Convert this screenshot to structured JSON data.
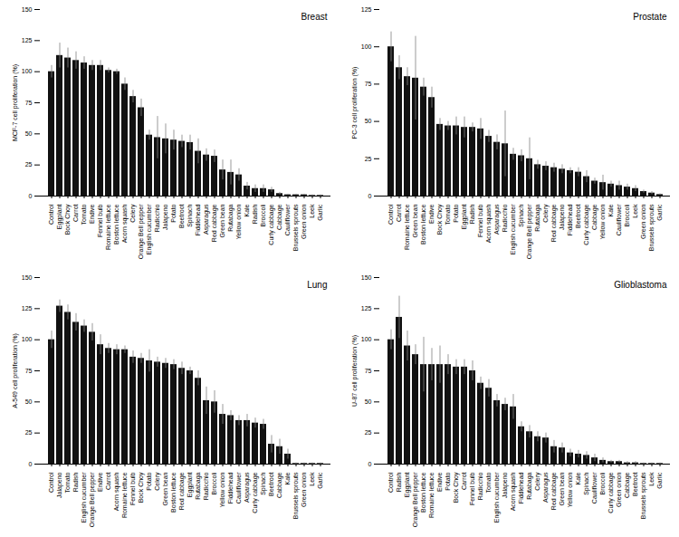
{
  "chart_data": [
    {
      "type": "bar",
      "title": "Breast",
      "ylabel": "MCF-7 cell proliferation (%)",
      "ylim": [
        0,
        150
      ],
      "yticks": [
        0,
        25,
        50,
        75,
        100,
        125,
        150
      ],
      "color": "#111111",
      "categories": [
        "Control",
        "Eggplant",
        "Bock Choy",
        "Carrot",
        "Tomato",
        "Endive",
        "Fennel bulb",
        "Romaine lettuce",
        "Boston lettuce",
        "Acorn squash",
        "Celery",
        "Orange Bell pepper",
        "English cucumber",
        "Radicchio",
        "Jalapeno",
        "Potato",
        "Beetroot",
        "Spinach",
        "Fiddlehead",
        "Asparagus",
        "Red cabbage",
        "Green bean",
        "Rutabaga",
        "Yellow onion",
        "Kale",
        "Radish",
        "Broccoli",
        "Curly cabbage",
        "Cabbage",
        "Cauliflower",
        "Brussels sprouts",
        "Green onion",
        "Leek",
        "Garlic"
      ],
      "values": [
        100,
        113,
        111,
        109,
        107,
        105,
        105,
        101,
        100,
        90,
        80,
        71,
        49,
        47,
        46,
        45,
        44,
        43,
        36,
        33,
        32,
        21,
        19,
        17,
        8,
        6,
        6,
        5,
        2,
        1,
        1,
        1,
        0.5,
        0.5
      ],
      "errors": [
        5,
        10,
        8,
        7,
        5,
        4,
        4,
        2,
        2,
        5,
        5,
        7,
        4,
        17,
        12,
        8,
        5,
        6,
        10,
        5,
        5,
        8,
        10,
        5,
        3,
        3,
        3,
        2,
        1,
        0.5,
        0.5,
        0.5,
        0.5,
        0.5
      ]
    },
    {
      "type": "bar",
      "title": "Prostate",
      "ylabel": "PC-3 cell proliferation (%)",
      "ylim": [
        0,
        125
      ],
      "yticks": [
        0,
        25,
        50,
        75,
        100,
        125
      ],
      "color": "#111111",
      "categories": [
        "Control",
        "Carrot",
        "Romaine lettuce",
        "Green bean",
        "Boston lettuce",
        "Endive",
        "Bock Choy",
        "Tomato",
        "Potato",
        "Eggplant",
        "Radish",
        "Fennel bulb",
        "Acorn squash",
        "Asparagus",
        "Radicchio",
        "English cucumber",
        "Spinach",
        "Orange Bell pepper",
        "Rutabaga",
        "Celery",
        "Red cabbage",
        "Jalapeno",
        "Fiddlehead",
        "Beetroot",
        "Curly cabbage",
        "Cabbage",
        "Yellow onion",
        "Kale",
        "Cauliflower",
        "Broccoli",
        "Leek",
        "Green onion",
        "Brussels sprouts",
        "Garlic"
      ],
      "values": [
        100,
        86,
        80,
        79,
        73,
        66,
        48,
        47,
        47,
        46,
        46,
        45,
        40,
        36,
        35,
        28,
        27,
        25,
        21,
        20,
        19,
        18,
        17,
        16,
        13,
        10,
        9,
        8,
        7,
        6,
        5,
        3,
        2,
        1
      ],
      "errors": [
        10,
        8,
        6,
        28,
        6,
        7,
        4,
        3,
        6,
        7,
        3,
        7,
        4,
        5,
        22,
        4,
        4,
        14,
        3,
        3,
        3,
        3,
        2,
        3,
        4,
        2,
        5,
        2,
        3,
        2,
        2,
        1,
        1,
        0.5
      ]
    },
    {
      "type": "bar",
      "title": "Lung",
      "ylabel": "A-549 cell proliferation (%)",
      "ylim": [
        0,
        150
      ],
      "yticks": [
        0,
        25,
        50,
        75,
        100,
        125,
        150
      ],
      "color": "#111111",
      "categories": [
        "Control",
        "Jalapeno",
        "Tomato",
        "Radish",
        "English cucumber",
        "Orange Bell pepper",
        "Endive",
        "Carrot",
        "Acorn squash",
        "Romaine lettuce",
        "Fennel bulb",
        "Bock Choy",
        "Potato",
        "Celery",
        "Green bean",
        "Boston lettuce",
        "Red cabbage",
        "Eggplant",
        "Rutabaga",
        "Radicchio",
        "Broccoli",
        "Yellow onion",
        "Fiddlehead",
        "Cauliflower",
        "Asparagus",
        "Curly cabbage",
        "Spinach",
        "Beetroot",
        "Cabbage",
        "Kale",
        "Brussels sprouts",
        "Green onion",
        "Leek",
        "Garlic"
      ],
      "values": [
        100,
        127,
        122,
        114,
        111,
        106,
        96,
        93,
        92,
        92,
        86,
        85,
        83,
        82,
        81,
        80,
        77,
        75,
        69,
        51,
        50,
        40,
        39,
        35,
        35,
        33,
        32,
        16,
        14,
        8,
        0.5,
        0.5,
        0.5,
        0.5
      ],
      "errors": [
        7,
        5,
        6,
        7,
        5,
        7,
        8,
        4,
        4,
        3,
        5,
        4,
        9,
        4,
        4,
        4,
        5,
        3,
        6,
        11,
        9,
        8,
        4,
        4,
        5,
        4,
        4,
        7,
        6,
        4,
        0.5,
        0.5,
        0.5,
        0.5
      ]
    },
    {
      "type": "bar",
      "title": "Glioblastoma",
      "ylabel": "U-87 cell proliferation (%)",
      "ylim": [
        0,
        150
      ],
      "yticks": [
        0,
        25,
        50,
        75,
        100,
        125,
        150
      ],
      "color": "#111111",
      "categories": [
        "Control",
        "Radish",
        "Eggplant",
        "Orange Bell pepper",
        "Boston lettuce",
        "Romaine lettuce",
        "Endive",
        "Potato",
        "Bock Choy",
        "Carrot",
        "Fennel bulb",
        "Radicchio",
        "Tomato",
        "English cucumber",
        "Jalapeno",
        "Acorn squash",
        "Fiddlehead",
        "Rutabaga",
        "Celery",
        "Asparagus",
        "Red cabbage",
        "Green bean",
        "Yellow onion",
        "Kale",
        "Spinach",
        "Cauliflower",
        "Broccoli",
        "Curly cabbage",
        "Green onion",
        "Cabbage",
        "Beetroot",
        "Brussels sprouts",
        "Leek",
        "Garlic"
      ],
      "values": [
        100,
        118,
        95,
        88,
        80,
        80,
        80,
        80,
        78,
        78,
        75,
        65,
        61,
        51,
        48,
        46,
        30,
        26,
        22,
        21,
        14,
        13,
        9,
        8,
        7,
        5,
        3,
        2,
        2,
        1,
        1,
        0.5,
        0.5,
        0.5
      ],
      "errors": [
        8,
        17,
        12,
        8,
        22,
        13,
        15,
        8,
        6,
        6,
        8,
        5,
        7,
        5,
        5,
        10,
        4,
        5,
        4,
        4,
        5,
        4,
        3,
        3,
        3,
        3,
        2,
        1,
        1,
        1,
        1,
        0.5,
        0.5,
        0.5
      ]
    }
  ]
}
